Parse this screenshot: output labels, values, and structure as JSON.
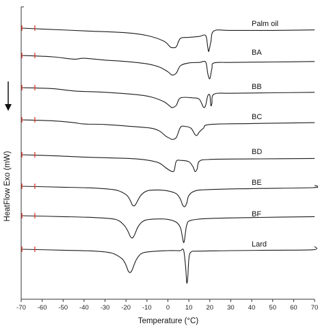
{
  "chart_data": {
    "type": "line",
    "title": "",
    "xlabel": "Temperature (°C)",
    "ylabel": "HeatFlow Exo (mW)",
    "xlim": [
      -70,
      70
    ],
    "x_ticks": [
      "-70",
      "-60",
      "-50",
      "-40",
      "-30",
      "-20",
      "-10",
      "0",
      "10",
      "20",
      "30",
      "40",
      "50",
      "60",
      "70"
    ],
    "grid": false,
    "legend": "labels beside curves",
    "colors": {
      "curve": "#1a1a1a",
      "marker": "#e0352b",
      "axis": "#333333"
    },
    "y_arrow": "down-arrow-icon",
    "series": [
      {
        "name": "Palm oil",
        "baseline": 0.0,
        "points": [
          [
            -70,
            0
          ],
          [
            -60,
            -2
          ],
          [
            -40,
            -6
          ],
          [
            -20,
            -10
          ],
          [
            -10,
            -16
          ],
          [
            -2,
            -28
          ],
          [
            1,
            -40
          ],
          [
            2,
            -42
          ],
          [
            4,
            -40
          ],
          [
            6,
            -22
          ],
          [
            10,
            -20
          ],
          [
            15,
            -18
          ],
          [
            18,
            -16
          ],
          [
            19,
            -40
          ],
          [
            19.5,
            -50
          ],
          [
            20.5,
            -30
          ],
          [
            22,
            -6
          ],
          [
            30,
            -5
          ],
          [
            50,
            -5
          ],
          [
            70,
            -4
          ]
        ]
      },
      {
        "name": "BA",
        "baseline": 0.0,
        "points": [
          [
            -70,
            0
          ],
          [
            -55,
            -3
          ],
          [
            -45,
            -8
          ],
          [
            -40,
            -6
          ],
          [
            -30,
            -10
          ],
          [
            -20,
            -13
          ],
          [
            -10,
            -18
          ],
          [
            -4,
            -25
          ],
          [
            0,
            -35
          ],
          [
            2,
            -42
          ],
          [
            4,
            -38
          ],
          [
            6,
            -22
          ],
          [
            10,
            -16
          ],
          [
            15,
            -15
          ],
          [
            18,
            -14
          ],
          [
            19,
            -38
          ],
          [
            20,
            -50
          ],
          [
            21,
            -28
          ],
          [
            22,
            -16
          ],
          [
            30,
            -15
          ],
          [
            50,
            -14
          ],
          [
            70,
            -13
          ]
        ]
      },
      {
        "name": "BB",
        "baseline": 0.0,
        "points": [
          [
            -70,
            0
          ],
          [
            -55,
            -2
          ],
          [
            -45,
            -7
          ],
          [
            -30,
            -10
          ],
          [
            -15,
            -15
          ],
          [
            -8,
            -20
          ],
          [
            -2,
            -30
          ],
          [
            1,
            -40
          ],
          [
            2,
            -43
          ],
          [
            4,
            -38
          ],
          [
            6,
            -22
          ],
          [
            12,
            -22
          ],
          [
            15,
            -25
          ],
          [
            17,
            -42
          ],
          [
            18,
            -38
          ],
          [
            19,
            -18
          ],
          [
            20,
            -16
          ],
          [
            20.5,
            -38
          ],
          [
            21,
            -34
          ],
          [
            22,
            -14
          ],
          [
            30,
            -12
          ],
          [
            50,
            -11
          ],
          [
            70,
            -10
          ]
        ]
      },
      {
        "name": "BC",
        "baseline": 0.0,
        "points": [
          [
            -70,
            0
          ],
          [
            -55,
            -2
          ],
          [
            -45,
            -6
          ],
          [
            -40,
            -9
          ],
          [
            -30,
            -10
          ],
          [
            -15,
            -15
          ],
          [
            -8,
            -18
          ],
          [
            -4,
            -24
          ],
          [
            -1,
            -35
          ],
          [
            1,
            -40
          ],
          [
            2,
            -42
          ],
          [
            4,
            -38
          ],
          [
            6,
            -16
          ],
          [
            8,
            -14
          ],
          [
            11,
            -18
          ],
          [
            13,
            -32
          ],
          [
            14,
            -33
          ],
          [
            15,
            -26
          ],
          [
            17,
            -18
          ],
          [
            20,
            -10
          ],
          [
            40,
            -8
          ],
          [
            70,
            -6
          ]
        ]
      },
      {
        "name": "BD",
        "baseline": 0.0,
        "points": [
          [
            -70,
            0
          ],
          [
            -55,
            -2
          ],
          [
            -40,
            -5
          ],
          [
            -25,
            -7
          ],
          [
            -15,
            -9
          ],
          [
            -8,
            -13
          ],
          [
            -4,
            -18
          ],
          [
            -1,
            -28
          ],
          [
            1,
            -34
          ],
          [
            2,
            -36
          ],
          [
            3,
            -34
          ],
          [
            4,
            -14
          ],
          [
            6,
            -12
          ],
          [
            10,
            -15
          ],
          [
            12,
            -26
          ],
          [
            13,
            -36
          ],
          [
            14,
            -30
          ],
          [
            15,
            -14
          ],
          [
            20,
            -10
          ],
          [
            40,
            -9
          ],
          [
            70,
            -8
          ]
        ]
      },
      {
        "name": "BE",
        "baseline": 0.0,
        "points": [
          [
            -70,
            0
          ],
          [
            -50,
            -2
          ],
          [
            -35,
            -4
          ],
          [
            -25,
            -8
          ],
          [
            -20,
            -18
          ],
          [
            -18,
            -30
          ],
          [
            -17,
            -40
          ],
          [
            -16,
            -42
          ],
          [
            -15,
            -36
          ],
          [
            -13,
            -20
          ],
          [
            -10,
            -10
          ],
          [
            -5,
            -8
          ],
          [
            0,
            -10
          ],
          [
            4,
            -16
          ],
          [
            6,
            -28
          ],
          [
            7,
            -40
          ],
          [
            8,
            -44
          ],
          [
            9,
            -36
          ],
          [
            10,
            -20
          ],
          [
            13,
            -10
          ],
          [
            20,
            -7
          ],
          [
            40,
            -5
          ],
          [
            69.5,
            -3
          ],
          [
            70,
            2
          ]
        ]
      },
      {
        "name": "BF",
        "baseline": 0.0,
        "points": [
          [
            -70,
            0
          ],
          [
            -50,
            -2
          ],
          [
            -35,
            -4
          ],
          [
            -25,
            -8
          ],
          [
            -21,
            -20
          ],
          [
            -19,
            -34
          ],
          [
            -18,
            -44
          ],
          [
            -17,
            -48
          ],
          [
            -16,
            -42
          ],
          [
            -14,
            -22
          ],
          [
            -11,
            -10
          ],
          [
            -5,
            -7
          ],
          [
            0,
            -8
          ],
          [
            4,
            -14
          ],
          [
            6,
            -26
          ],
          [
            7,
            -48
          ],
          [
            7.5,
            -58
          ],
          [
            8,
            -50
          ],
          [
            9,
            -20
          ],
          [
            11,
            -10
          ],
          [
            20,
            -6
          ],
          [
            40,
            -4
          ],
          [
            70,
            -2
          ]
        ]
      },
      {
        "name": "Lard",
        "baseline": 0.0,
        "points": [
          [
            -70,
            0
          ],
          [
            -50,
            -2
          ],
          [
            -35,
            -4
          ],
          [
            -27,
            -8
          ],
          [
            -22,
            -20
          ],
          [
            -20,
            -34
          ],
          [
            -19,
            -46
          ],
          [
            -18,
            -50
          ],
          [
            -17,
            -44
          ],
          [
            -15,
            -22
          ],
          [
            -12,
            -8
          ],
          [
            -5,
            -4
          ],
          [
            0,
            -3
          ],
          [
            4,
            -3
          ],
          [
            6,
            -3
          ],
          [
            7.5,
            -2
          ],
          [
            8.5,
            -40
          ],
          [
            9,
            -72
          ],
          [
            9.5,
            -60
          ],
          [
            10,
            -22
          ],
          [
            11,
            -6
          ],
          [
            15,
            -4
          ],
          [
            30,
            -3
          ],
          [
            50,
            -2
          ],
          [
            69.5,
            -1
          ],
          [
            70,
            6
          ]
        ]
      }
    ]
  }
}
